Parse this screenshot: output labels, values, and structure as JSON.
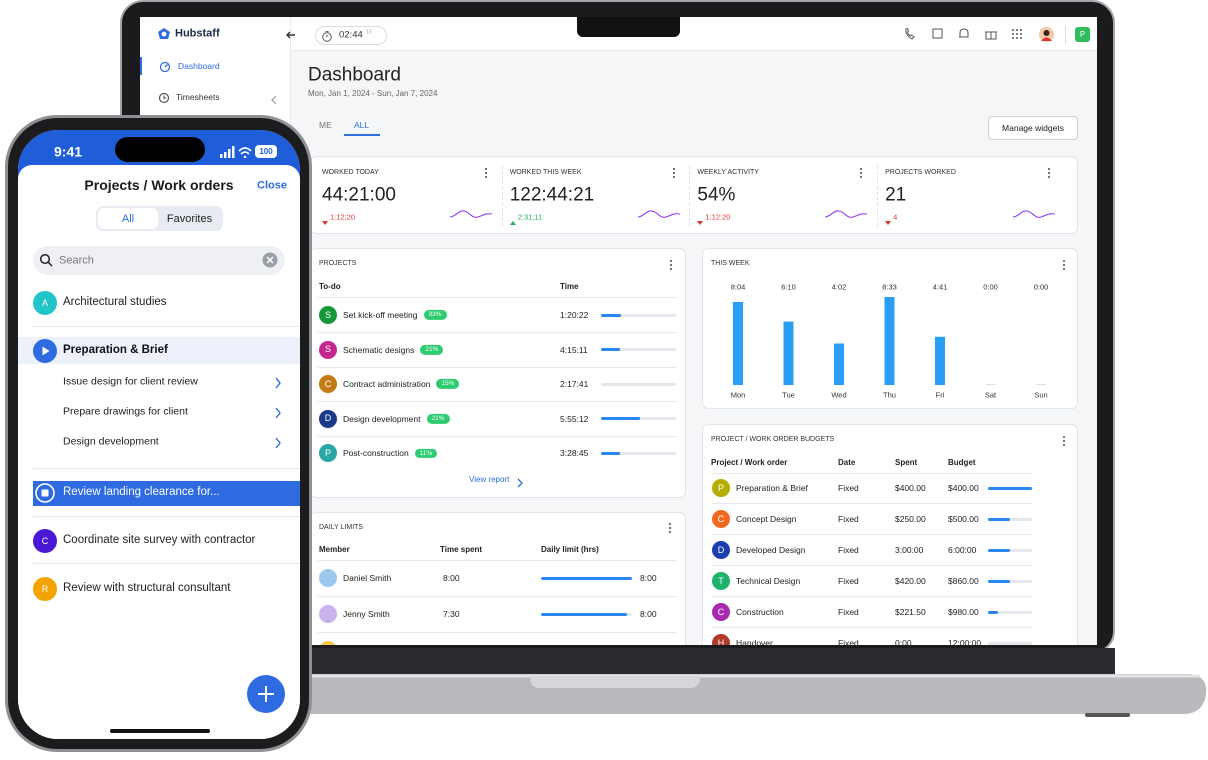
{
  "laptop": {
    "sidebar": {
      "brand": "Hubstaff",
      "items": [
        "Dashboard",
        "Timesheets"
      ]
    },
    "topbar": {
      "timer": "02:44",
      "timer_seconds": "15",
      "avatar": "P"
    },
    "header": {
      "title": "Dashboard",
      "date_range": "Mon, Jan 1, 2024 - Sun, Jan 7, 2024",
      "tabs": [
        "ME",
        "ALL"
      ],
      "button": "Manage widgets"
    },
    "stats": [
      {
        "label": "WORKED TODAY",
        "value": "44:21:00",
        "change": "1:12:20",
        "trend": "down"
      },
      {
        "label": "WORKED THIS WEEK",
        "value": "122:44:21",
        "change": "2:31:11",
        "trend": "up"
      },
      {
        "label": "WEEKLY ACTIVITY",
        "value": "54%",
        "change": "1:12:20",
        "trend": "down"
      },
      {
        "label": "PROJECTS WORKED",
        "value": "21",
        "change": "4",
        "trend": "down"
      }
    ],
    "projects": {
      "title": "PROJECTS",
      "columns": [
        "To-do",
        "Time"
      ],
      "rows": [
        {
          "initial": "S",
          "name": "Set kick-off meeting",
          "badge": "33%",
          "time": "1:20:22",
          "progress": 27,
          "color": "#17973b"
        },
        {
          "initial": "S",
          "name": "Schematic designs",
          "badge": "21%",
          "time": "4:15:11",
          "progress": 25,
          "color": "#c4268f"
        },
        {
          "initial": "C",
          "name": "Contract administration",
          "badge": "15%",
          "time": "2:17:41",
          "progress": 0,
          "color": "#c47a16"
        },
        {
          "initial": "D",
          "name": "Design development",
          "badge": "21%",
          "time": "5:55:12",
          "progress": 52,
          "color": "#1c3889"
        },
        {
          "initial": "P",
          "name": "Post-construction",
          "badge": "11%",
          "time": "3:28:45",
          "progress": 25,
          "color": "#2aa6a4"
        }
      ],
      "link": "View report"
    },
    "this_week": {
      "title": "THIS WEEK",
      "categories": [
        "Mon",
        "Tue",
        "Wed",
        "Thu",
        "Fri",
        "Sat",
        "Sun"
      ],
      "values": [
        484,
        370,
        242,
        513,
        281,
        0,
        0
      ],
      "value_labels": [
        "8:04",
        "6:10",
        "4:02",
        "8:33",
        "4:41",
        "0:00",
        "0:00"
      ],
      "color": "#2a9df4"
    },
    "daily_limits": {
      "title": "DAILY LIMITS",
      "columns": [
        "Member",
        "Time spent",
        "Daily limit (hrs)"
      ],
      "rows": [
        {
          "name": "Daniel Smith",
          "spent": "8:00",
          "limit": "8:00",
          "progress": 100,
          "color": "#9cc7ef"
        },
        {
          "name": "Jenny Smith",
          "spent": "7:30",
          "limit": "8:00",
          "progress": 94,
          "color": "#c8b3ee"
        }
      ]
    },
    "budgets": {
      "title": "PROJECT / WORK ORDER BUDGETS",
      "columns": [
        "Project / Work order",
        "Date",
        "Spent",
        "Budget"
      ],
      "rows": [
        {
          "initial": "P",
          "name": "Preparation & Brief",
          "date": "Fixed",
          "spent": "$400.00",
          "budget": "$400.00",
          "progress": 100,
          "color": "#b3ae00"
        },
        {
          "initial": "C",
          "name": "Concept Design",
          "date": "Fixed",
          "spent": "$250.00",
          "budget": "$500.00",
          "progress": 50,
          "color": "#f0691f"
        },
        {
          "initial": "D",
          "name": "Developed Design",
          "date": "Fixed",
          "spent": "3:00:00",
          "budget": "6:00:00",
          "progress": 50,
          "color": "#1d3fae"
        },
        {
          "initial": "T",
          "name": "Technical Design",
          "date": "Fixed",
          "spent": "$420.00",
          "budget": "$860.00",
          "progress": 49,
          "color": "#1eb36c"
        },
        {
          "initial": "C",
          "name": "Construction",
          "date": "Fixed",
          "spent": "$221.50",
          "budget": "$980.00",
          "progress": 23,
          "color": "#a62bb0"
        },
        {
          "initial": "H",
          "name": "Handover",
          "date": "Fixed",
          "spent": "0:00",
          "budget": "12:00:00",
          "progress": 0,
          "color": "#b03a2a"
        }
      ]
    }
  },
  "phone": {
    "status": {
      "time": "9:41",
      "battery": "100"
    },
    "title": "Projects / Work orders",
    "close": "Close",
    "tabs": [
      "All",
      "Favorites"
    ],
    "search": "Search",
    "items": [
      {
        "initial": "A",
        "label": "Architectural studies",
        "color": "#21c5c8"
      },
      {
        "label": "Preparation & Brief",
        "state": "playing",
        "subitems": [
          "Issue design for client review",
          "Prepare drawings for client",
          "Design development"
        ]
      },
      {
        "label": "Review landing clearance for...",
        "state": "active"
      },
      {
        "initial": "C",
        "label": "Coordinate site survey with contractor",
        "color": "#4a17d4"
      },
      {
        "initial": "R",
        "label": "Review with structural consultant",
        "color": "#f4a300"
      }
    ]
  }
}
